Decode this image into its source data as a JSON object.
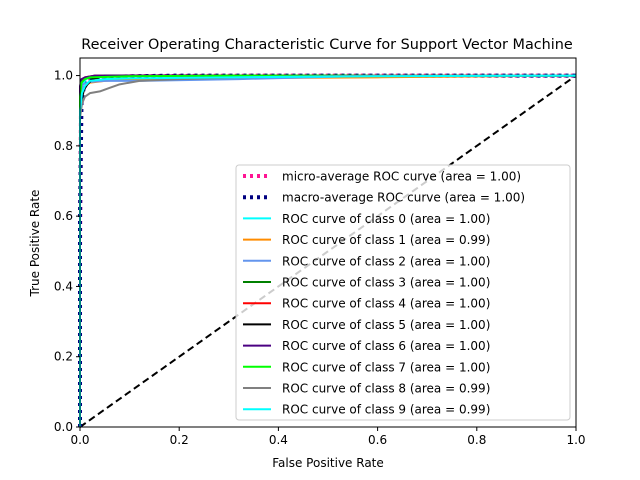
{
  "chart_data": {
    "type": "line",
    "title": "Receiver Operating Characteristic Curve for Support Vector Machine",
    "xlabel": "False Positive Rate",
    "ylabel": "True Positive Rate",
    "xlim": [
      0,
      1
    ],
    "ylim": [
      0,
      1.05
    ],
    "xticks": [
      0.0,
      0.2,
      0.4,
      0.6,
      0.8,
      1.0
    ],
    "yticks": [
      0.0,
      0.2,
      0.4,
      0.6,
      0.8,
      1.0
    ],
    "xtick_labels": [
      "0.0",
      "0.2",
      "0.4",
      "0.6",
      "0.8",
      "1.0"
    ],
    "ytick_labels": [
      "0.0",
      "0.2",
      "0.4",
      "0.6",
      "0.8",
      "1.0"
    ],
    "grid": false,
    "legend_position": "lower-right",
    "diagonal": {
      "x": [
        0,
        1
      ],
      "y": [
        0,
        1
      ],
      "color": "#000000",
      "style": "dashed"
    },
    "series": [
      {
        "name": "micro-average ROC curve (area = 1.00)",
        "color": "#ff1493",
        "style": "dotted",
        "x": [
          0,
          0,
          0.002,
          0.005,
          0.01,
          0.02,
          0.05,
          0.1,
          0.2,
          0.4,
          0.6,
          0.8,
          1.0
        ],
        "y": [
          0,
          0.5,
          0.9,
          0.96,
          0.985,
          0.992,
          0.996,
          0.998,
          0.999,
          1.0,
          1.0,
          1.0,
          1.0
        ]
      },
      {
        "name": "macro-average ROC curve (area = 1.00)",
        "color": "#000080",
        "style": "dotted",
        "x": [
          0,
          0,
          0.003,
          0.008,
          0.02,
          0.05,
          0.1,
          0.2,
          0.4,
          0.6,
          0.8,
          1.0
        ],
        "y": [
          0,
          0.6,
          0.92,
          0.97,
          0.99,
          0.995,
          0.998,
          1.0,
          1.0,
          1.0,
          1.0,
          1.0
        ]
      },
      {
        "name": "ROC curve of class 0 (area = 1.00)",
        "color": "#00ffff",
        "style": "solid",
        "x": [
          0,
          0,
          0.004,
          0.012,
          0.03,
          1.0
        ],
        "y": [
          0,
          0.91,
          0.97,
          0.99,
          1.0,
          1.0
        ]
      },
      {
        "name": "ROC curve of class 1 (area = 0.99)",
        "color": "#ff8c00",
        "style": "solid",
        "x": [
          0,
          0,
          0.004,
          0.01,
          0.02,
          0.05,
          0.1,
          0.35,
          0.6,
          1.0
        ],
        "y": [
          0,
          0.9,
          0.95,
          0.97,
          0.98,
          0.985,
          0.99,
          0.993,
          0.995,
          1.0
        ]
      },
      {
        "name": "ROC curve of class 2 (area = 1.00)",
        "color": "#6495ed",
        "style": "solid",
        "x": [
          0,
          0,
          0.006,
          0.02,
          0.05,
          0.12,
          0.32,
          0.6,
          1.0
        ],
        "y": [
          0,
          0.93,
          0.975,
          0.982,
          0.985,
          0.985,
          0.99,
          1.0,
          1.0
        ]
      },
      {
        "name": "ROC curve of class 3 (area = 1.00)",
        "color": "#008000",
        "style": "solid",
        "x": [
          0,
          0,
          0.003,
          0.01,
          0.03,
          0.1,
          1.0
        ],
        "y": [
          0,
          0.95,
          0.985,
          0.992,
          0.996,
          1.0,
          1.0
        ]
      },
      {
        "name": "ROC curve of class 4 (area = 1.00)",
        "color": "#ff0000",
        "style": "solid",
        "x": [
          0,
          0,
          0.003,
          0.01,
          0.03,
          1.0
        ],
        "y": [
          0,
          0.96,
          0.985,
          0.995,
          1.0,
          1.0
        ]
      },
      {
        "name": "ROC curve of class 5 (area = 1.00)",
        "color": "#000000",
        "style": "solid",
        "x": [
          0,
          0,
          0.003,
          0.008,
          0.015,
          0.025,
          0.05,
          0.1,
          1.0
        ],
        "y": [
          0,
          0.9,
          0.93,
          0.96,
          0.975,
          0.99,
          1.0,
          1.0,
          1.0
        ]
      },
      {
        "name": "ROC curve of class 6 (area = 1.00)",
        "color": "#4b0082",
        "style": "solid",
        "x": [
          0,
          0,
          0.003,
          0.01,
          0.03,
          1.0
        ],
        "y": [
          0,
          0.97,
          0.99,
          0.995,
          1.0,
          1.0
        ]
      },
      {
        "name": "ROC curve of class 7 (area = 1.00)",
        "color": "#00ff00",
        "style": "solid",
        "x": [
          0,
          0,
          0.003,
          0.01,
          0.02,
          0.1,
          0.3,
          1.0
        ],
        "y": [
          0,
          0.94,
          0.98,
          0.99,
          0.995,
          0.998,
          1.0,
          1.0
        ]
      },
      {
        "name": "ROC curve of class 8 (area = 0.99)",
        "color": "#808080",
        "style": "solid",
        "x": [
          0,
          0,
          0.004,
          0.01,
          0.02,
          0.04,
          0.06,
          0.08,
          0.1,
          0.12,
          0.2,
          0.32,
          0.6,
          1.0
        ],
        "y": [
          0,
          0.88,
          0.92,
          0.94,
          0.95,
          0.955,
          0.965,
          0.975,
          0.98,
          0.985,
          0.99,
          0.995,
          1.0,
          1.0
        ]
      },
      {
        "name": "ROC curve of class 9 (area = 0.99)",
        "color": "#00ffff",
        "style": "solid",
        "x": [
          0,
          0,
          0.004,
          0.01,
          0.02,
          0.05,
          0.1,
          0.3,
          0.6,
          1.0
        ],
        "y": [
          0,
          0.9,
          0.95,
          0.97,
          0.985,
          0.99,
          0.992,
          0.995,
          0.998,
          1.0
        ]
      }
    ]
  }
}
